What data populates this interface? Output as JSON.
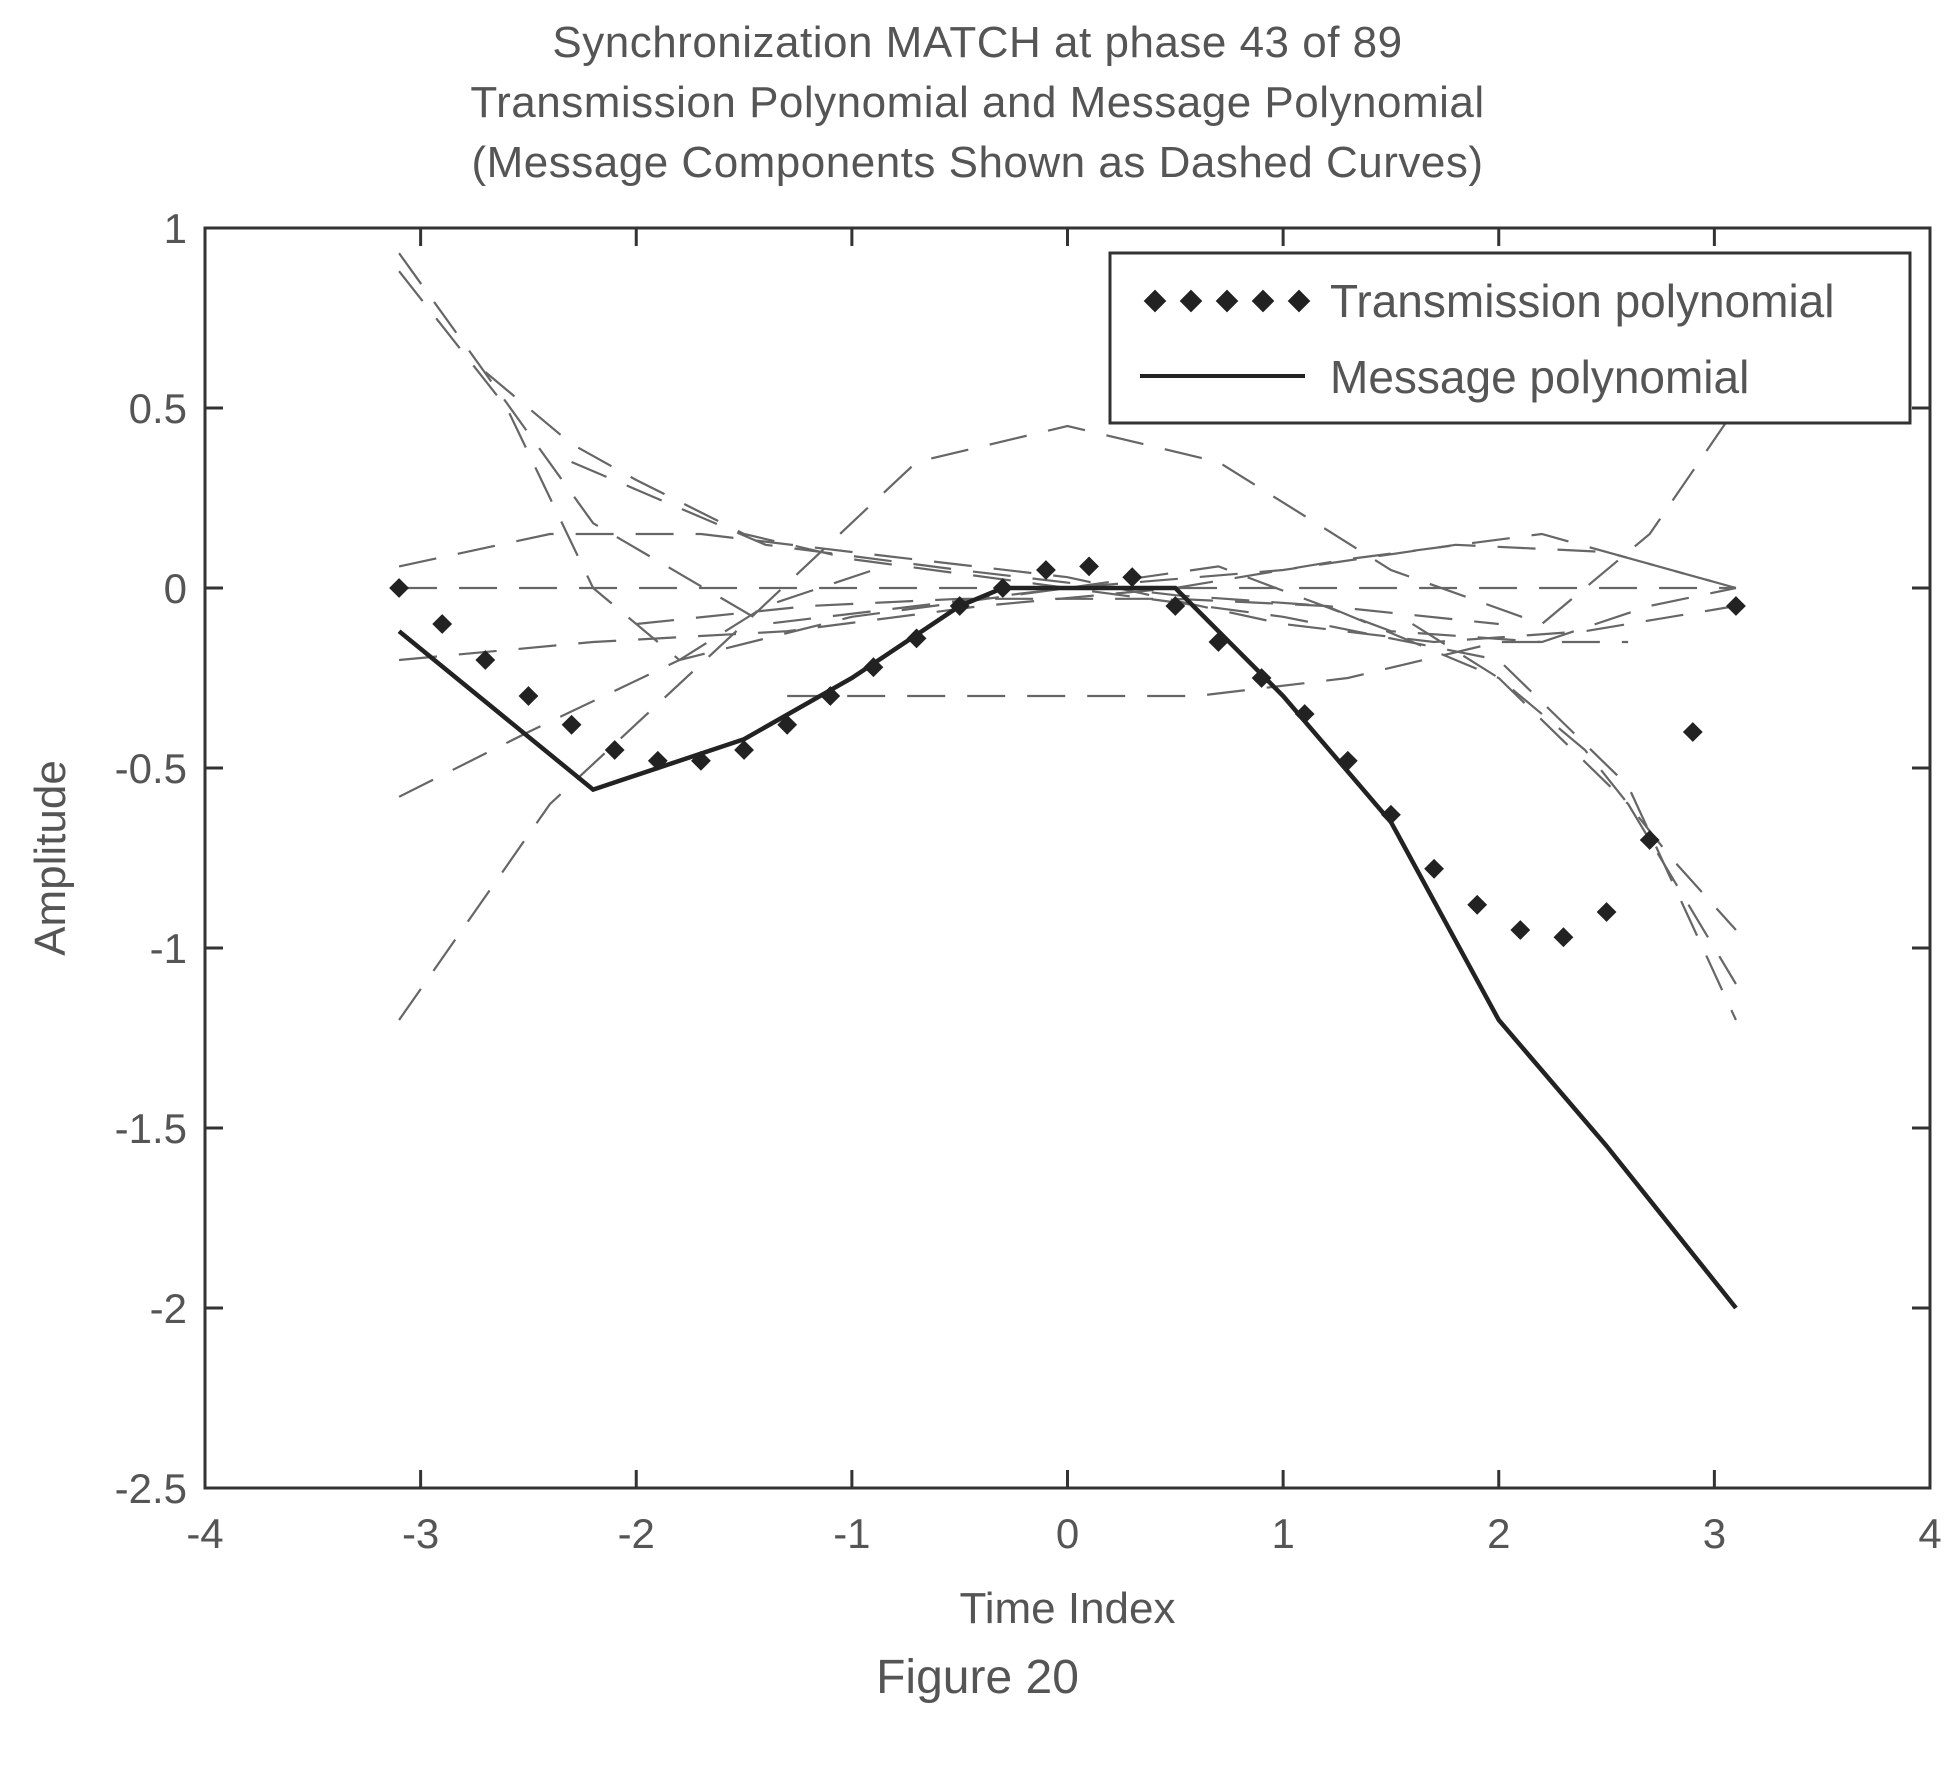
{
  "chart_data": {
    "type": "line",
    "title_lines": [
      "Synchronization MATCH at phase 43 of 89",
      "Transmission Polynomial and Message Polynomial",
      "(Message Components Shown as Dashed Curves)"
    ],
    "xlabel": "Time Index",
    "ylabel": "Amplitude",
    "xlim": [
      -4,
      4
    ],
    "ylim": [
      -2.5,
      1
    ],
    "xticks": [
      -4,
      -3,
      -2,
      -1,
      0,
      1,
      2,
      3,
      4
    ],
    "yticks": [
      1,
      0.5,
      0,
      -0.5,
      -1,
      -1.5,
      -2,
      -2.5
    ],
    "xtick_labels": [
      "-4",
      "-3",
      "-2",
      "-1",
      "0",
      "1",
      "2",
      "3",
      "4"
    ],
    "ytick_labels": [
      "1",
      "0.5",
      "0",
      "-0.5",
      "-1",
      "-1.5",
      "-2",
      "-2.5"
    ],
    "grid": false,
    "legend": {
      "position": "top-right",
      "entries": [
        "Transmission polynomial",
        "Message polynomial"
      ]
    },
    "series": [
      {
        "name": "Transmission polynomial",
        "style": "dotted",
        "color": "#222222",
        "x": [
          -3.1,
          -2.9,
          -2.7,
          -2.5,
          -2.3,
          -2.1,
          -1.9,
          -1.7,
          -1.5,
          -1.3,
          -1.1,
          -0.9,
          -0.7,
          -0.5,
          -0.3,
          -0.1,
          0.1,
          0.3,
          0.5,
          0.7,
          0.9,
          1.1,
          1.3,
          1.5,
          1.7,
          1.9,
          2.1,
          2.3,
          2.5,
          2.7,
          2.9,
          3.1
        ],
        "y": [
          0.0,
          -0.1,
          -0.2,
          -0.3,
          -0.38,
          -0.45,
          -0.48,
          -0.48,
          -0.45,
          -0.38,
          -0.3,
          -0.22,
          -0.14,
          -0.05,
          0.0,
          0.05,
          0.06,
          0.03,
          -0.05,
          -0.15,
          -0.25,
          -0.35,
          -0.48,
          -0.63,
          -0.78,
          -0.88,
          -0.95,
          -0.97,
          -0.9,
          -0.7,
          -0.4,
          -0.05
        ]
      },
      {
        "name": "Message polynomial",
        "style": "solid",
        "color": "#222222",
        "x": [
          -3.1,
          -2.2,
          -1.5,
          -1.0,
          -0.5,
          -0.3,
          0.0,
          0.5,
          1.0,
          1.5,
          2.0,
          2.5,
          3.1
        ],
        "y": [
          -0.12,
          -0.56,
          -0.42,
          -0.25,
          -0.05,
          0.0,
          0.0,
          0.0,
          -0.3,
          -0.65,
          -1.2,
          -1.55,
          -2.0
        ]
      }
    ],
    "components": [
      {
        "style": "dashed",
        "x": [
          -3.1,
          -2.2,
          -1.4,
          0.0,
          0.7,
          1.5,
          2.2,
          2.7,
          3.1
        ],
        "y": [
          0.93,
          0.18,
          -0.1,
          0.0,
          0.06,
          -0.12,
          -0.15,
          -0.05,
          0.0
        ]
      },
      {
        "style": "dashed",
        "x": [
          -3.1,
          -2.6,
          -2.2,
          -1.8,
          -1.4,
          -0.9
        ],
        "y": [
          0.88,
          0.5,
          0.0,
          -0.2,
          -0.05,
          0.05
        ]
      },
      {
        "style": "dashed",
        "x": [
          -2.7,
          -2.3,
          -2.0,
          -1.5,
          -1.0,
          0.0,
          1.0,
          2.0,
          2.6,
          3.1
        ],
        "y": [
          0.6,
          0.4,
          0.3,
          0.15,
          0.08,
          0.0,
          -0.08,
          -0.2,
          -0.55,
          -1.2
        ]
      },
      {
        "style": "dashed",
        "x": [
          -2.3,
          -1.4,
          -0.5,
          0.5,
          1.2,
          2.0,
          2.6,
          3.1
        ],
        "y": [
          0.35,
          0.12,
          0.05,
          -0.02,
          -0.05,
          -0.25,
          -0.6,
          -1.1
        ]
      },
      {
        "style": "dashed",
        "x": [
          -3.1,
          -2.4,
          -1.5,
          -0.7,
          0.0,
          0.7,
          1.5,
          2.2,
          2.7,
          3.1
        ],
        "y": [
          -1.2,
          -0.6,
          -0.1,
          0.35,
          0.45,
          0.35,
          0.05,
          -0.1,
          0.15,
          0.5
        ]
      },
      {
        "style": "dashed",
        "x": [
          -3.1,
          -2.5,
          -1.8,
          -1.0,
          0.0,
          1.0,
          1.8,
          2.5,
          3.1
        ],
        "y": [
          -0.58,
          -0.4,
          -0.2,
          -0.08,
          0.0,
          0.05,
          0.12,
          0.1,
          0.0
        ]
      },
      {
        "style": "dashed",
        "x": [
          -3.1,
          -2.4,
          -1.7,
          -1.0,
          0.0,
          1.0,
          1.7,
          2.4,
          3.1
        ],
        "y": [
          0.06,
          0.15,
          0.15,
          0.1,
          0.03,
          -0.1,
          -0.15,
          -0.12,
          -0.05
        ]
      },
      {
        "style": "dashed",
        "x": [
          -3.1,
          -2.4,
          -1.6,
          -0.8,
          0.0,
          0.8,
          1.6,
          2.4,
          3.1
        ],
        "y": [
          0.0,
          0.0,
          0.0,
          0.0,
          0.0,
          0.0,
          0.0,
          0.0,
          0.0
        ]
      },
      {
        "style": "dashed",
        "x": [
          -3.1,
          -2.2,
          -1.3,
          -0.4,
          0.5,
          1.3,
          2.2,
          3.1
        ],
        "y": [
          -0.2,
          -0.15,
          -0.12,
          -0.05,
          0.0,
          0.08,
          0.15,
          0.0
        ]
      },
      {
        "style": "dashed",
        "x": [
          -1.3,
          -0.6,
          0.0,
          0.6,
          1.3,
          2.0,
          2.6
        ],
        "y": [
          -0.3,
          -0.3,
          -0.3,
          -0.3,
          -0.25,
          -0.15,
          -0.15
        ]
      },
      {
        "style": "dashed",
        "x": [
          -2.0,
          -1.2,
          -0.5,
          0.0,
          0.5,
          1.2,
          2.0
        ],
        "y": [
          -0.1,
          -0.05,
          -0.03,
          -0.03,
          -0.03,
          -0.05,
          -0.1
        ]
      },
      {
        "style": "dashed",
        "x": [
          1.6,
          2.0,
          2.4,
          2.8,
          3.1
        ],
        "y": [
          -0.1,
          -0.25,
          -0.45,
          -0.75,
          -0.95
        ]
      }
    ]
  },
  "caption": "Figure 20"
}
